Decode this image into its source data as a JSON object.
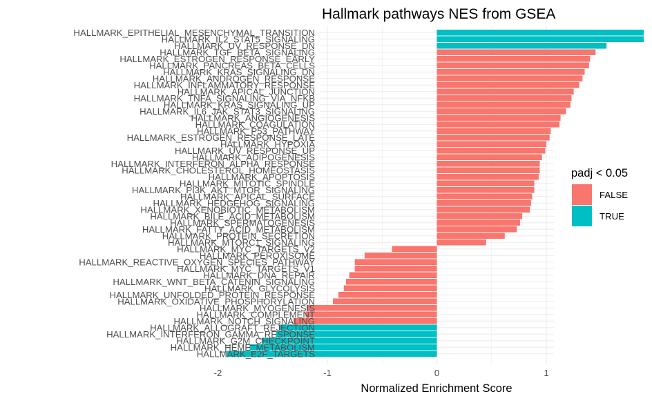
{
  "chart_data": {
    "type": "bar",
    "orientation": "horizontal",
    "title": "Hallmark pathways NES from GSEA",
    "xlabel": "Normalized Enrichment Score",
    "ylabel": "",
    "xlim": [
      -2.0,
      2.0
    ],
    "xticks": [
      -2,
      -1,
      0,
      1,
      2
    ],
    "xtick_labels": [
      "-2",
      "-1",
      "0",
      "1",
      "2"
    ],
    "grid": true,
    "legend": {
      "title": "padj < 0.05",
      "position": "right",
      "entries": [
        {
          "label": "FALSE",
          "color": "#F8766D"
        },
        {
          "label": "TRUE",
          "color": "#00BFC4"
        }
      ]
    },
    "colors": {
      "FALSE": "#F8766D",
      "TRUE": "#00BFC4"
    },
    "categories": [
      "HALLMARK_EPITHELIAL_MESENCHYMAL_TRANSITION",
      "HALLMARK_IL2_STAT5_SIGNALING",
      "HALLMARK_UV_RESPONSE_DN",
      "HALLMARK_TGF_BETA_SIGNALING",
      "HALLMARK_ESTROGEN_RESPONSE_EARLY",
      "HALLMARK_PANCREAS_BETA_CELLS",
      "HALLMARK_KRAS_SIGNALING_DN",
      "HALLMARK_ANDROGEN_RESPONSE",
      "HALLMARK_INFLAMMATORY_RESPONSE",
      "HALLMARK_APICAL_JUNCTION",
      "HALLMARK_TNFA_SIGNALING_VIA_NFKB",
      "HALLMARK_KRAS_SIGNALING_UP",
      "HALLMARK_IL6_JAK_STAT3_SIGNALING",
      "HALLMARK_ANGIOGENESIS",
      "HALLMARK_COAGULATION",
      "HALLMARK_P53_PATHWAY",
      "HALLMARK_ESTROGEN_RESPONSE_LATE",
      "HALLMARK_HYPOXIA",
      "HALLMARK_UV_RESPONSE_UP",
      "HALLMARK_ADIPOGENESIS",
      "HALLMARK_INTERFERON_ALPHA_RESPONSE",
      "HALLMARK_CHOLESTEROL_HOMEOSTASIS",
      "HALLMARK_APOPTOSIS",
      "HALLMARK_MITOTIC_SPINDLE",
      "HALLMARK_PI3K_AKT_MTOR_SIGNALING",
      "HALLMARK_APICAL_SURFACE",
      "HALLMARK_HEDGEHOG_SIGNALING",
      "HALLMARK_XENOBIOTIC_METABOLISM",
      "HALLMARK_BILE_ACID_METABOLISM",
      "HALLMARK_SPERMATOGENESIS",
      "HALLMARK_FATTY_ACID_METABOLISM",
      "HALLMARK_PROTEIN_SECRETION",
      "HALLMARK_MTORC1_SIGNALING",
      "HALLMARK_MYC_TARGETS_V2",
      "HALLMARK_PEROXISOME",
      "HALLMARK_REACTIVE_OXYGEN_SPECIES_PATHWAY",
      "HALLMARK_MYC_TARGETS_V1",
      "HALLMARK_DNA_REPAIR",
      "HALLMARK_WNT_BETA_CATENIN_SIGNALING",
      "HALLMARK_GLYCOLYSIS",
      "HALLMARK_UNFOLDED_PROTEIN_RESPONSE",
      "HALLMARK_OXIDATIVE_PHOSPHORYLATION",
      "HALLMARK_MYOGENESIS",
      "HALLMARK_COMPLEMENT",
      "HALLMARK_NOTCH_SIGNALING",
      "HALLMARK_ALLOGRAFT_REJECTION",
      "HALLMARK_INTERFERON_GAMMA_RESPONSE",
      "HALLMARK_G2M_CHECKPOINT",
      "HALLMARK_HEME_METABOLISM",
      "HALLMARK_E2F_TARGETS"
    ],
    "values": [
      1.89,
      1.89,
      1.55,
      1.45,
      1.4,
      1.39,
      1.35,
      1.33,
      1.3,
      1.25,
      1.23,
      1.22,
      1.18,
      1.13,
      1.12,
      1.04,
      1.03,
      1.0,
      0.99,
      0.96,
      0.94,
      0.94,
      0.93,
      0.89,
      0.89,
      0.87,
      0.86,
      0.85,
      0.78,
      0.76,
      0.73,
      0.62,
      0.45,
      -0.41,
      -0.66,
      -0.75,
      -0.75,
      -0.8,
      -0.83,
      -0.85,
      -0.9,
      -0.95,
      -1.19,
      -1.2,
      -1.31,
      -1.44,
      -1.47,
      -1.6,
      -1.71,
      -1.92
    ],
    "padj_significant": [
      true,
      true,
      true,
      false,
      false,
      false,
      false,
      false,
      false,
      false,
      false,
      false,
      false,
      false,
      false,
      false,
      false,
      false,
      false,
      false,
      false,
      false,
      false,
      false,
      false,
      false,
      false,
      false,
      false,
      false,
      false,
      false,
      false,
      false,
      false,
      false,
      false,
      false,
      false,
      false,
      false,
      false,
      false,
      false,
      false,
      true,
      true,
      true,
      true,
      true
    ]
  }
}
